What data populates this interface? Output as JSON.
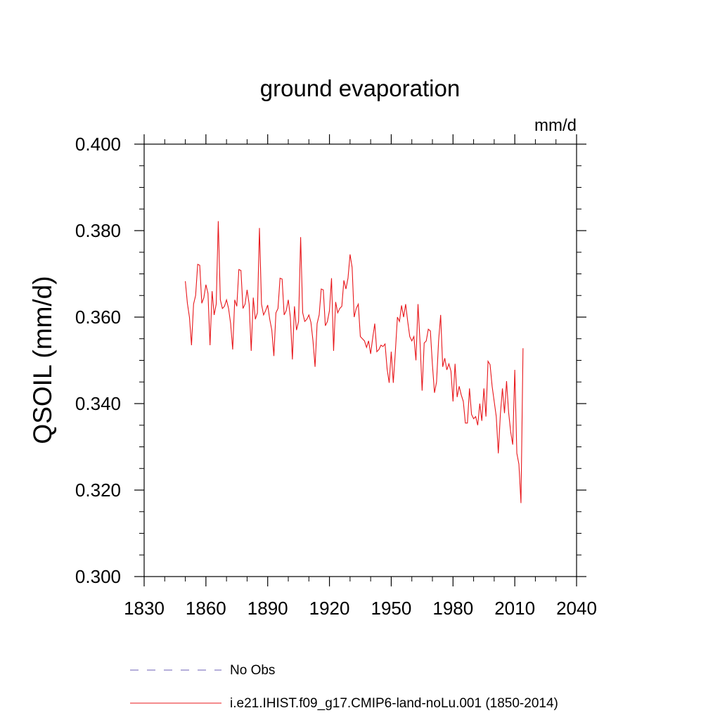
{
  "chart_data": {
    "type": "line",
    "title": "ground evaporation",
    "units": "mm/d",
    "ylabel": "QSOIL  (mm/d)",
    "xlim": [
      1830,
      2040
    ],
    "ylim": [
      0.3,
      0.4
    ],
    "x_ticks": [
      "1830",
      "1860",
      "1890",
      "1920",
      "1950",
      "1980",
      "2010",
      "2040"
    ],
    "y_ticks": [
      "0.300",
      "0.320",
      "0.340",
      "0.360",
      "0.380",
      "0.400"
    ],
    "legend": {
      "placement": "bottom",
      "entries": [
        {
          "label": "No Obs",
          "color": "#6b5fb5",
          "dashed": true
        },
        {
          "label": "i.e21.IHIST.f09_g17.CMIP6-land-noLu.001 (1850-2014)",
          "color": "#e8171b",
          "dashed": false
        }
      ]
    },
    "series": [
      {
        "name": "i.e21.IHIST.f09_g17.CMIP6-land-noLu.001 (1850-2014)",
        "color": "#e8171b",
        "x_start": 1850,
        "x_step": 1,
        "values": [
          0.3683,
          0.3632,
          0.36,
          0.3535,
          0.363,
          0.365,
          0.3722,
          0.372,
          0.3632,
          0.3645,
          0.3675,
          0.3655,
          0.3535,
          0.366,
          0.3605,
          0.363,
          0.3822,
          0.364,
          0.362,
          0.3625,
          0.364,
          0.362,
          0.3585,
          0.3525,
          0.364,
          0.3625,
          0.371,
          0.3708,
          0.362,
          0.363,
          0.3663,
          0.363,
          0.3522,
          0.3645,
          0.3595,
          0.361,
          0.3806,
          0.363,
          0.3605,
          0.3615,
          0.3628,
          0.3595,
          0.357,
          0.351,
          0.361,
          0.362,
          0.369,
          0.3688,
          0.3605,
          0.3615,
          0.364,
          0.36,
          0.3502,
          0.3625,
          0.357,
          0.359,
          0.3785,
          0.361,
          0.359,
          0.3595,
          0.3605,
          0.3588,
          0.3545,
          0.3485,
          0.3585,
          0.3605,
          0.3665,
          0.3663,
          0.358,
          0.359,
          0.3615,
          0.369,
          0.3522,
          0.3635,
          0.361,
          0.362,
          0.3625,
          0.3685,
          0.3665,
          0.369,
          0.3745,
          0.3715,
          0.36,
          0.362,
          0.363,
          0.3555,
          0.355,
          0.3545,
          0.353,
          0.3545,
          0.3515,
          0.3552,
          0.3585,
          0.352,
          0.3525,
          0.3535,
          0.3532,
          0.3538,
          0.348,
          0.3448,
          0.352,
          0.3448,
          0.352,
          0.36,
          0.359,
          0.3627,
          0.36,
          0.363,
          0.359,
          0.3555,
          0.3545,
          0.3555,
          0.35,
          0.363,
          0.354,
          0.343,
          0.354,
          0.3545,
          0.3572,
          0.3568,
          0.349,
          0.3425,
          0.345,
          0.3545,
          0.3605,
          0.3485,
          0.3505,
          0.3478,
          0.3492,
          0.3475,
          0.3405,
          0.3492,
          0.3415,
          0.344,
          0.342,
          0.3405,
          0.3355,
          0.3355,
          0.3435,
          0.3375,
          0.3365,
          0.337,
          0.335,
          0.34,
          0.336,
          0.3435,
          0.337,
          0.3498,
          0.349,
          0.344,
          0.3405,
          0.337,
          0.3285,
          0.3375,
          0.3435,
          0.3378,
          0.3452,
          0.338,
          0.3335,
          0.3305,
          0.3478,
          0.3285,
          0.326,
          0.317,
          0.3528
        ]
      }
    ]
  }
}
